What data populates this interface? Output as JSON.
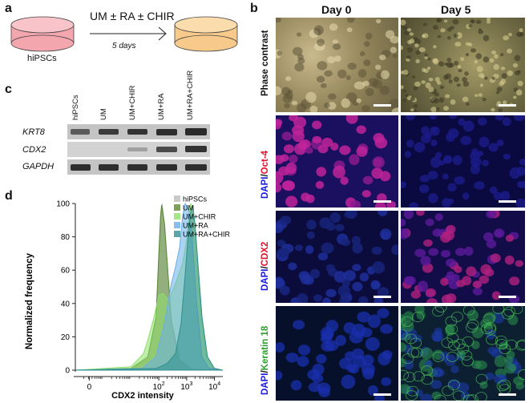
{
  "panels": {
    "a": {
      "label": "a",
      "treatment": "UM ± RA ± CHIR",
      "duration": "5 days",
      "dish_label": "hiPSCs",
      "colors": {
        "dish_before": "#f4a6ae",
        "dish_after": "#f7c98a"
      }
    },
    "b": {
      "label": "b",
      "columns": [
        "Day 0",
        "Day 5"
      ],
      "rows": [
        {
          "parts": [
            {
              "text": "Phase contrast",
              "color": "#111111"
            }
          ]
        },
        {
          "parts": [
            {
              "text": "DAPI",
              "color": "#1a1adb"
            },
            {
              "text": "/",
              "color": "#111111"
            },
            {
              "text": "Oct-4",
              "color": "#e0102a"
            }
          ]
        },
        {
          "parts": [
            {
              "text": "DAPI",
              "color": "#1a1adb"
            },
            {
              "text": "/",
              "color": "#111111"
            },
            {
              "text": "CDX2",
              "color": "#e0102a"
            }
          ]
        },
        {
          "parts": [
            {
              "text": "DAPI",
              "color": "#1a1adb"
            },
            {
              "text": "/",
              "color": "#111111"
            },
            {
              "text": "Keratin 18",
              "color": "#2e9e2e"
            }
          ]
        }
      ]
    },
    "c": {
      "label": "c",
      "lanes": [
        "hiPSCs",
        "UM",
        "UM+CHIR",
        "UM+RA",
        "UM+RA+CHIR"
      ],
      "genes": [
        "KRT8",
        "CDX2",
        "GAPDH"
      ]
    },
    "d": {
      "label": "d",
      "chart_data": {
        "type": "area",
        "title": "",
        "xlabel": "CDX2 intensity",
        "ylabel": "Normalized frequency",
        "xscale": "log",
        "xlim_log10": [
          -1,
          4.3
        ],
        "ylim": [
          0,
          100
        ],
        "yticks": [
          "0",
          "20",
          "40",
          "60",
          "80",
          "100"
        ],
        "xticks": [
          {
            "base": "0",
            "exp": "",
            "log": -0.5
          },
          {
            "base": "10",
            "exp": "2",
            "log": 2
          },
          {
            "base": "10",
            "exp": "3",
            "log": 3
          },
          {
            "base": "10",
            "exp": "4",
            "log": 4
          }
        ],
        "legend_position": "top-right",
        "series": [
          {
            "name": "hiPSCs",
            "color": "#bdbdbd",
            "points": [
              [
                -1,
                0
              ],
              [
                1.0,
                1
              ],
              [
                1.6,
                7
              ],
              [
                1.9,
                30
              ],
              [
                2.07,
                90
              ],
              [
                2.12,
                100
              ],
              [
                2.22,
                86
              ],
              [
                2.45,
                26
              ],
              [
                2.75,
                5
              ],
              [
                3.2,
                0.5
              ],
              [
                4.3,
                0
              ]
            ]
          },
          {
            "name": "UM",
            "color": "#5a8a32",
            "points": [
              [
                -1,
                0
              ],
              [
                1.0,
                1
              ],
              [
                1.6,
                8
              ],
              [
                1.9,
                32
              ],
              [
                2.06,
                92
              ],
              [
                2.1,
                99
              ],
              [
                2.2,
                88
              ],
              [
                2.45,
                30
              ],
              [
                2.75,
                6
              ],
              [
                3.2,
                0.5
              ],
              [
                4.3,
                0
              ]
            ]
          },
          {
            "name": "UM+CHIR",
            "color": "#8ee06a",
            "points": [
              [
                -1,
                0
              ],
              [
                1.0,
                2
              ],
              [
                1.45,
                10
              ],
              [
                1.6,
                18
              ],
              [
                1.8,
                30
              ],
              [
                2.0,
                45
              ],
              [
                2.15,
                46
              ],
              [
                2.35,
                42
              ],
              [
                2.6,
                52
              ],
              [
                2.85,
                64
              ],
              [
                3.0,
                78
              ],
              [
                3.1,
                96
              ],
              [
                3.15,
                100
              ],
              [
                3.3,
                86
              ],
              [
                3.5,
                38
              ],
              [
                3.7,
                9
              ],
              [
                4.0,
                1
              ],
              [
                4.3,
                0
              ]
            ]
          },
          {
            "name": "UM+RA",
            "color": "#6aaee8",
            "points": [
              [
                -1,
                0
              ],
              [
                1.4,
                1
              ],
              [
                1.9,
                8
              ],
              [
                2.2,
                28
              ],
              [
                2.45,
                52
              ],
              [
                2.6,
                62
              ],
              [
                2.75,
                74
              ],
              [
                2.85,
                92
              ],
              [
                2.95,
                100
              ],
              [
                3.08,
                96
              ],
              [
                3.18,
                84
              ],
              [
                3.35,
                42
              ],
              [
                3.55,
                8
              ],
              [
                3.8,
                1
              ],
              [
                4.3,
                0
              ]
            ]
          },
          {
            "name": "UM+RA+CHIR",
            "color": "#2f8f92",
            "points": [
              [
                -1,
                0
              ],
              [
                1.9,
                1
              ],
              [
                2.3,
                4
              ],
              [
                2.6,
                10
              ],
              [
                2.8,
                28
              ],
              [
                2.95,
                58
              ],
              [
                3.05,
                80
              ],
              [
                3.15,
                96
              ],
              [
                3.22,
                99
              ],
              [
                3.3,
                88
              ],
              [
                3.4,
                65
              ],
              [
                3.55,
                32
              ],
              [
                3.75,
                8
              ],
              [
                4.0,
                1
              ],
              [
                4.3,
                0
              ]
            ]
          }
        ]
      }
    }
  }
}
